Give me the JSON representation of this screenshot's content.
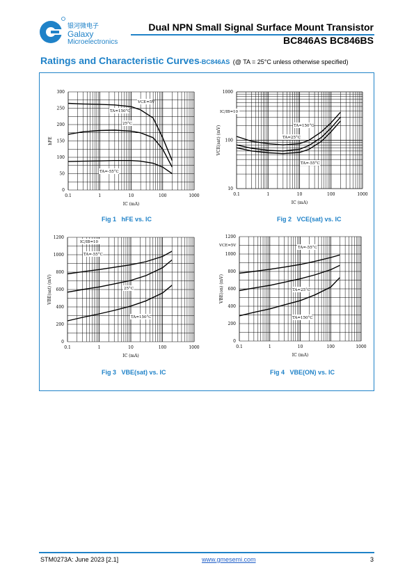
{
  "logo": {
    "name_cn": "银河微电子",
    "name_en1": "Galaxy",
    "name_en2": "Microelectronics",
    "brand_color": "#1f82c8"
  },
  "header": {
    "title": "Dual NPN Small Signal Surface Mount Transistor",
    "part_numbers": "BC846AS  BC846BS"
  },
  "section": {
    "heading": "Ratings and Characteristic Curves",
    "part": "-BC846AS",
    "conditions": "(@ TA = 25°C unless otherwise specified)"
  },
  "figures": [
    {
      "label": "Fig 1",
      "caption": "hFE vs. IC"
    },
    {
      "label": "Fig 2",
      "caption": "VCE(sat) vs. IC"
    },
    {
      "label": "Fig 3",
      "caption": "VBE(sat) vs. IC"
    },
    {
      "label": "Fig 4",
      "caption": "VBE(ON) vs. IC"
    }
  ],
  "footer": {
    "doc_id": "STM0273A: June 2023 [2.1]",
    "url": "www.gmesemi.com",
    "page": "3"
  },
  "chart_data": [
    {
      "type": "line",
      "xlabel": "IC (mA)",
      "ylabel": "hFE",
      "xscale": "log",
      "xlim": [
        0.1,
        1000
      ],
      "ylim": [
        0,
        300
      ],
      "xticks": [
        "0.1",
        "1",
        "10",
        "100",
        "1000"
      ],
      "yticks": [
        "0",
        "50",
        "100",
        "150",
        "200",
        "250",
        "300"
      ],
      "annotations": [
        "VCE=5V",
        "TA=150°C",
        "25°C",
        "TA=-55°C"
      ],
      "series": [
        {
          "name": "TA=150°C",
          "x": [
            0.1,
            0.3,
            1,
            3,
            10,
            20,
            50,
            100,
            200
          ],
          "y": [
            265,
            263,
            262,
            260,
            255,
            245,
            220,
            160,
            90
          ]
        },
        {
          "name": "25°C",
          "x": [
            0.1,
            0.3,
            1,
            3,
            10,
            20,
            50,
            100,
            200
          ],
          "y": [
            170,
            178,
            182,
            183,
            180,
            175,
            160,
            125,
            70
          ]
        },
        {
          "name": "TA=-55°C",
          "x": [
            0.1,
            0.3,
            1,
            3,
            10,
            20,
            50,
            100,
            200
          ],
          "y": [
            87,
            88,
            89,
            90,
            90,
            88,
            82,
            70,
            50
          ]
        }
      ]
    },
    {
      "type": "line",
      "xlabel": "IC (mA)",
      "ylabel": "VCE(sat) (mV)",
      "xscale": "log",
      "yscale": "log",
      "xlim": [
        0.1,
        1000
      ],
      "ylim": [
        10,
        1000
      ],
      "xticks": [
        "0.1",
        "1",
        "10",
        "100",
        "1000"
      ],
      "yticks": [
        "10",
        "100",
        "1000"
      ],
      "annotations": [
        "IC/IB=10",
        "TA=150°C",
        "TA=25°C",
        "TA=-55°C"
      ],
      "series": [
        {
          "name": "TA=150°C",
          "x": [
            0.1,
            0.3,
            1,
            3,
            10,
            20,
            50,
            100,
            200
          ],
          "y": [
            120,
            95,
            85,
            80,
            85,
            100,
            150,
            230,
            380
          ]
        },
        {
          "name": "TA=25°C",
          "x": [
            0.1,
            0.3,
            1,
            3,
            10,
            20,
            50,
            100,
            200
          ],
          "y": [
            80,
            68,
            62,
            60,
            65,
            78,
            115,
            180,
            300
          ]
        },
        {
          "name": "TA=-55°C",
          "x": [
            0.1,
            0.3,
            1,
            3,
            10,
            20,
            50,
            100,
            200
          ],
          "y": [
            70,
            60,
            55,
            53,
            56,
            65,
            95,
            150,
            250
          ]
        }
      ]
    },
    {
      "type": "line",
      "xlabel": "IC (mA)",
      "ylabel": "VBE(sat) (mV)",
      "xscale": "log",
      "xlim": [
        0.1,
        1000
      ],
      "ylim": [
        0,
        1200
      ],
      "xticks": [
        "0.1",
        "1",
        "10",
        "100",
        "1000"
      ],
      "yticks": [
        "0",
        "200",
        "400",
        "600",
        "800",
        "1000",
        "1200"
      ],
      "annotations": [
        "IC/IB=10",
        "TA=-55°C",
        "25°C",
        "TA=150°C"
      ],
      "series": [
        {
          "name": "TA=-55°C",
          "x": [
            0.1,
            0.3,
            1,
            3,
            10,
            30,
            100,
            200
          ],
          "y": [
            780,
            805,
            830,
            855,
            885,
            920,
            980,
            1040
          ]
        },
        {
          "name": "25°C",
          "x": [
            0.1,
            0.3,
            1,
            3,
            10,
            30,
            100,
            200
          ],
          "y": [
            570,
            600,
            630,
            665,
            705,
            760,
            850,
            940
          ]
        },
        {
          "name": "TA=150°C",
          "x": [
            0.1,
            0.3,
            1,
            3,
            10,
            30,
            100,
            200
          ],
          "y": [
            240,
            280,
            320,
            360,
            410,
            470,
            560,
            650
          ]
        }
      ]
    },
    {
      "type": "line",
      "xlabel": "IC (mA)",
      "ylabel": "VBE(on) (mV)",
      "xscale": "log",
      "xlim": [
        0.1,
        1000
      ],
      "ylim": [
        0,
        1200
      ],
      "xticks": [
        "0.1",
        "1",
        "10",
        "100",
        "1000"
      ],
      "yticks": [
        "0",
        "200",
        "400",
        "600",
        "800",
        "1000",
        "1200"
      ],
      "annotations": [
        "VCE=5V",
        "TA=-55°C",
        "TA=25°C",
        "TA=150°C"
      ],
      "series": [
        {
          "name": "TA=-55°C",
          "x": [
            0.1,
            0.3,
            1,
            3,
            10,
            30,
            100,
            200
          ],
          "y": [
            780,
            800,
            825,
            850,
            880,
            915,
            960,
            990
          ]
        },
        {
          "name": "TA=25°C",
          "x": [
            0.1,
            0.3,
            1,
            3,
            10,
            30,
            100,
            200
          ],
          "y": [
            580,
            610,
            640,
            675,
            715,
            760,
            820,
            870
          ]
        },
        {
          "name": "TA=150°C",
          "x": [
            0.1,
            0.3,
            1,
            3,
            10,
            30,
            100,
            200
          ],
          "y": [
            290,
            330,
            370,
            415,
            465,
            530,
            620,
            730
          ]
        }
      ]
    }
  ]
}
